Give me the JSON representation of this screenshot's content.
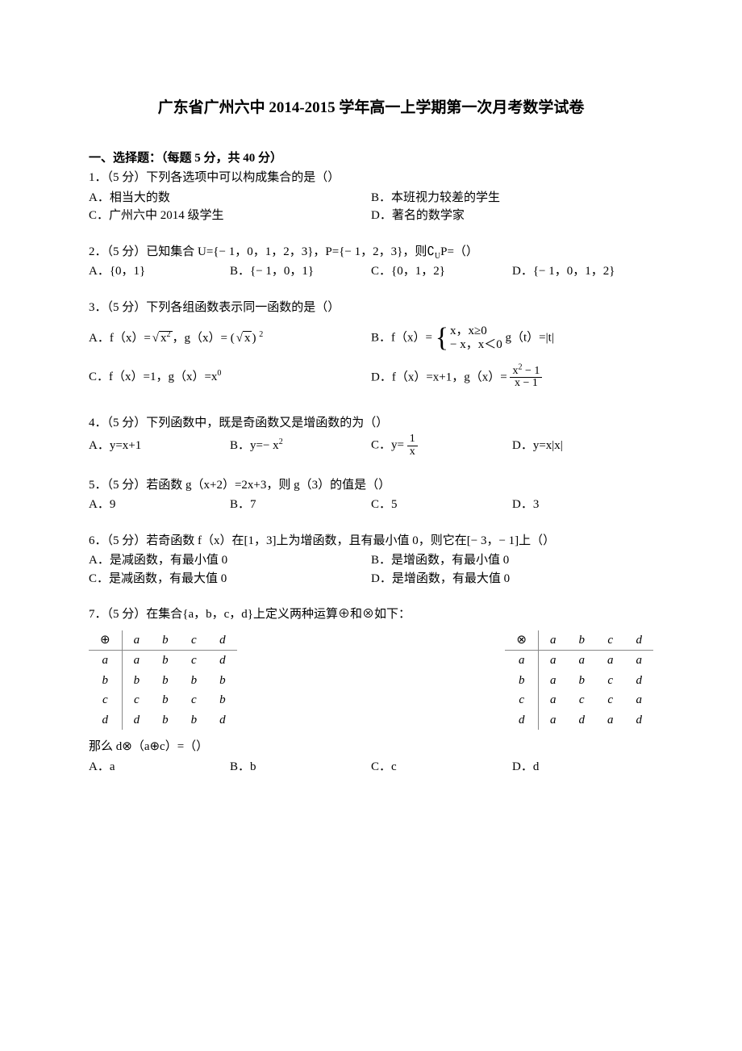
{
  "title": "广东省广州六中 2014-2015 学年高一上学期第一次月考数学试卷",
  "section_header": "一、选择题：（每题 5 分，共 40 分）",
  "q1": {
    "stem": "1．（5 分）下列各选项中可以构成集合的是（）",
    "A": "A．相当大的数",
    "B": "B．本班视力较差的学生",
    "C": "C．广州六中 2014 级学生",
    "D": "D．著名的数学家"
  },
  "q2": {
    "stem_a": "2．（5 分）已知集合 U={− 1，0，1，2，3}，P={− 1，2，3}，则",
    "stem_b": "P=（）",
    "comp": "∁",
    "compsub": "U",
    "A": "A．{0，1}",
    "B": "B．{− 1，0，1}",
    "C": "C．{0，1，2}",
    "D": "D．{− 1，0，1，2}"
  },
  "q3": {
    "stem": "3．（5 分）下列各组函数表示同一函数的是（）",
    "A_pre": "A．f（x）=",
    "A_rad": "x",
    "A_radexp": "2",
    "A_mid": "，g（x）= (",
    "A_rad2": "x",
    "A_post": ")",
    "A_outexp": "2",
    "B_pre": "B．f（x）=",
    "B_case1": "x，x≥0",
    "B_case2": "− x，x＜0",
    "B_post": "g（t）=|t|",
    "C": "C．f（x）=1，g（x）=x",
    "C_exp": "0",
    "D_pre": "D．f（x）=x+1，g（x）=",
    "D_num_a": "x",
    "D_num_exp": "2",
    "D_num_b": " − 1",
    "D_den": "x − 1"
  },
  "q4": {
    "stem": "4．（5 分）下列函数中，既是奇函数又是增函数的为（）",
    "A": "A．y=x+1",
    "B_pre": "B．y=− x",
    "B_exp": "2",
    "C_pre": "C．y=",
    "C_num": "1",
    "C_den": "x",
    "D": "D．y=x|x|"
  },
  "q5": {
    "stem": "5．（5 分）若函数 g（x+2）=2x+3，则 g（3）的值是（）",
    "A": "A．9",
    "B": "B．7",
    "C": "C．5",
    "D": "D．3"
  },
  "q6": {
    "stem": "6．（5 分）若奇函数 f（x）在[1，3]上为增函数，且有最小值 0，则它在[− 3，− 1]上（）",
    "A": "A．是减函数，有最小值 0",
    "B": "B．是增函数，有最小值 0",
    "C": "C．是减函数，有最大值 0",
    "D": "D．是增函数，有最大值 0"
  },
  "q7": {
    "stem": "7．（5 分）在集合{a，b，c，d}上定义两种运算⊕和⊗如下：",
    "tableL": {
      "op": "⊕",
      "headers": [
        "a",
        "b",
        "c",
        "d"
      ],
      "rows": [
        {
          "h": "a",
          "cells": [
            "a",
            "b",
            "c",
            "d"
          ]
        },
        {
          "h": "b",
          "cells": [
            "b",
            "b",
            "b",
            "b"
          ]
        },
        {
          "h": "c",
          "cells": [
            "c",
            "b",
            "c",
            "b"
          ]
        },
        {
          "h": "d",
          "cells": [
            "d",
            "b",
            "b",
            "d"
          ]
        }
      ]
    },
    "tableR": {
      "op": "⊗",
      "headers": [
        "a",
        "b",
        "c",
        "d"
      ],
      "rows": [
        {
          "h": "a",
          "cells": [
            "a",
            "a",
            "a",
            "a"
          ]
        },
        {
          "h": "b",
          "cells": [
            "a",
            "b",
            "c",
            "d"
          ]
        },
        {
          "h": "c",
          "cells": [
            "a",
            "c",
            "c",
            "a"
          ]
        },
        {
          "h": "d",
          "cells": [
            "a",
            "d",
            "a",
            "d"
          ]
        }
      ]
    },
    "stem2": "那么 d⊗（a⊕c）=（）",
    "A": "A．a",
    "B": "B．b",
    "C": "C．c",
    "D": "D．d"
  }
}
